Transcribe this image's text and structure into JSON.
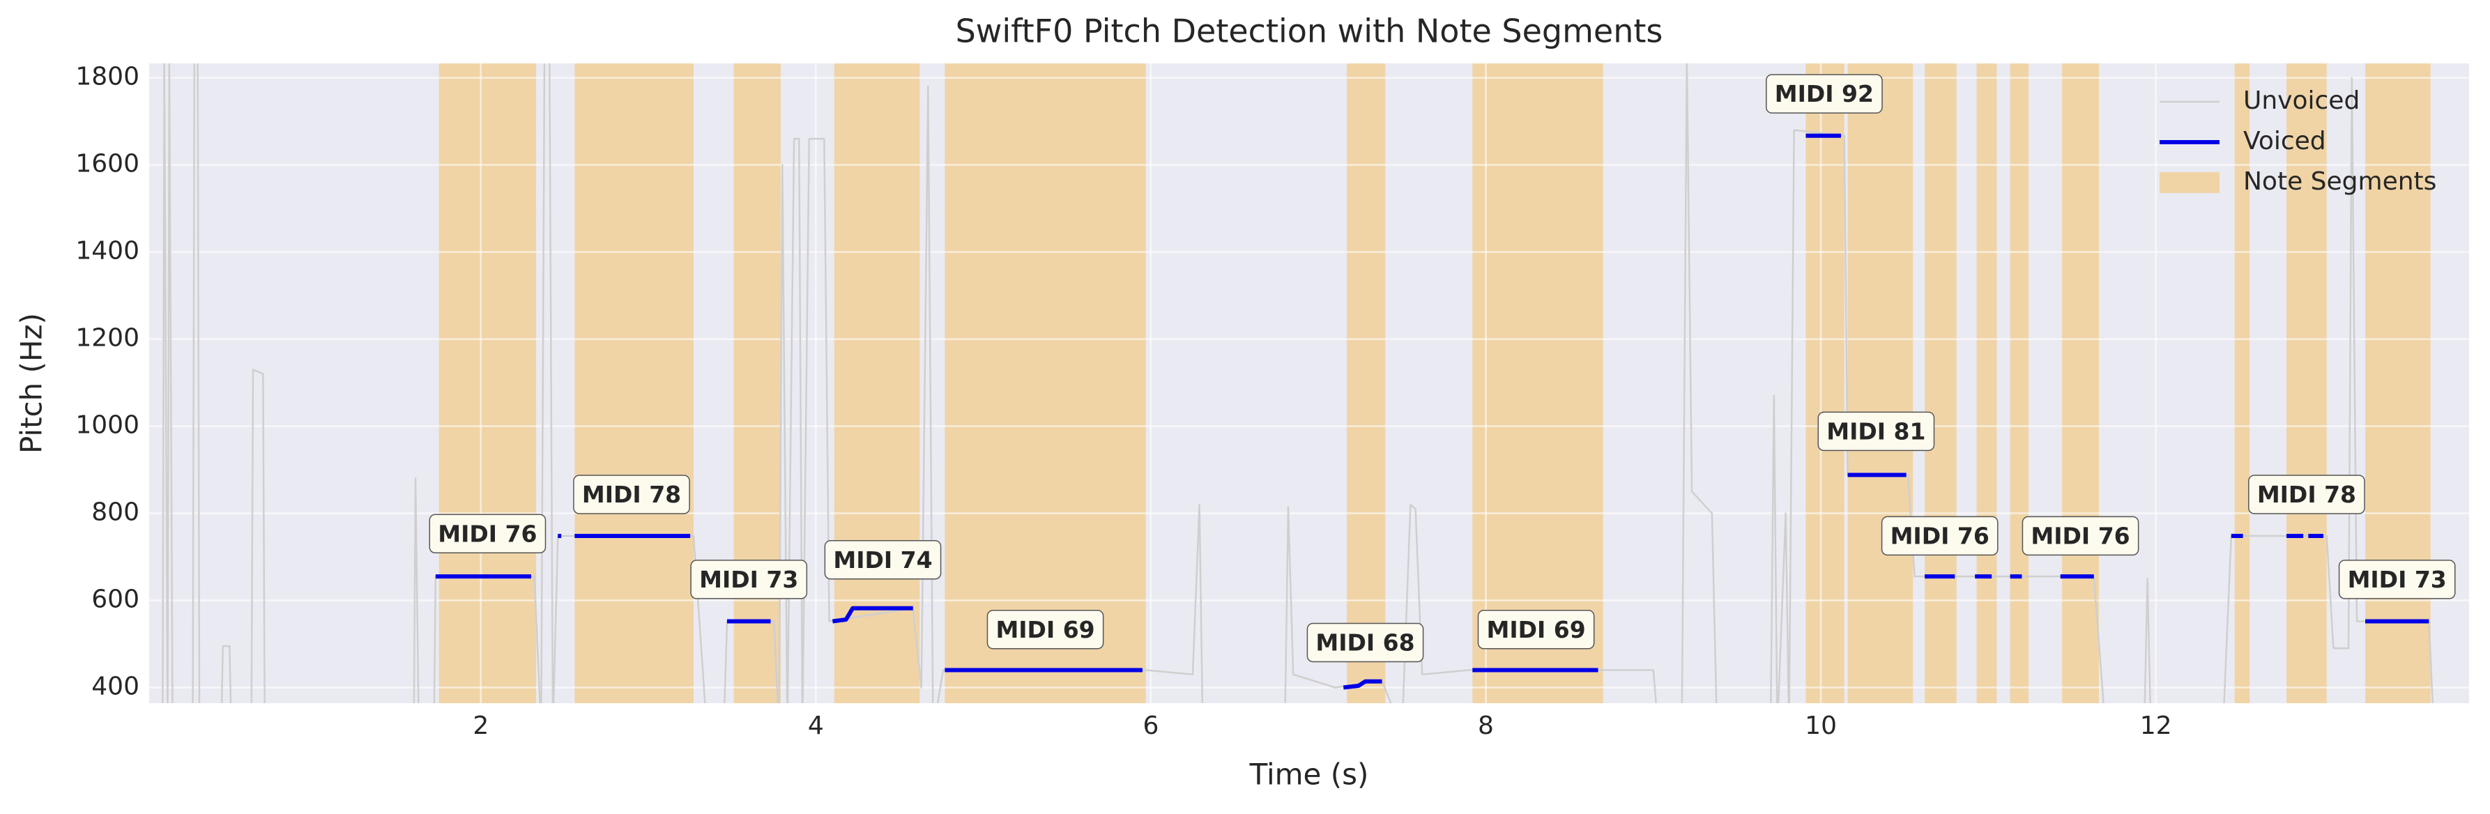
{
  "chart_data": {
    "type": "line",
    "title": "SwiftF0 Pitch Detection with Note Segments",
    "xlabel": "Time (s)",
    "ylabel": "Pitch (Hz)",
    "xlim": [
      0.02,
      13.87
    ],
    "ylim": [
      364,
      1833
    ],
    "xticks": [
      2,
      4,
      6,
      8,
      10,
      12
    ],
    "yticks": [
      400,
      600,
      800,
      1000,
      1200,
      1400,
      1600,
      1800
    ],
    "grid": true,
    "legend": "upper right",
    "background": "#eaeaf2",
    "series": [
      {
        "name": "Unvoiced",
        "color": "#cfcfcf",
        "x": [
          0.1,
          0.11,
          0.13,
          0.14,
          0.16,
          0.28,
          0.29,
          0.31,
          0.32,
          0.45,
          0.46,
          0.5,
          0.51,
          0.63,
          0.64,
          0.7,
          0.71,
          1.6,
          1.61,
          1.63,
          1.72,
          1.73,
          2.32,
          2.36,
          2.38,
          2.41,
          2.43,
          2.46,
          3.27,
          3.35,
          3.45,
          3.47,
          3.75,
          3.78,
          3.8,
          3.83,
          3.87,
          3.9,
          3.92,
          3.96,
          4.05,
          4.08,
          4.58,
          4.63,
          4.67,
          4.7,
          4.76,
          5.97,
          6.25,
          6.29,
          6.31,
          6.8,
          6.82,
          6.85,
          7.1,
          7.38,
          7.5,
          7.55,
          7.58,
          7.62,
          7.9,
          8.68,
          9.0,
          9.03,
          9.17,
          9.2,
          9.23,
          9.35,
          9.38,
          9.7,
          9.72,
          9.74,
          9.79,
          9.81,
          9.84,
          10.14,
          10.16,
          10.52,
          10.56,
          11.63,
          11.7,
          11.93,
          11.95,
          11.97,
          12.4,
          12.45,
          13.02,
          13.06,
          13.15,
          13.17,
          13.2,
          13.63,
          13.66,
          13.87
        ],
        "values": [
          300,
          1850,
          300,
          1850,
          300,
          300,
          1850,
          1850,
          300,
          300,
          495,
          495,
          300,
          300,
          1130,
          1120,
          300,
          300,
          880,
          300,
          300,
          655,
          655,
          300,
          1850,
          1850,
          300,
          748,
          748,
          300,
          300,
          552,
          552,
          300,
          1600,
          300,
          1660,
          1660,
          300,
          1660,
          1660,
          552,
          582,
          400,
          1780,
          300,
          440,
          440,
          430,
          820,
          300,
          300,
          815,
          430,
          400,
          415,
          300,
          820,
          810,
          430,
          440,
          440,
          440,
          300,
          300,
          1850,
          850,
          800,
          300,
          300,
          1070,
          300,
          800,
          300,
          1680,
          1667,
          888,
          888,
          655,
          655,
          300,
          300,
          650,
          300,
          300,
          748,
          748,
          490,
          490,
          1800,
          552,
          552,
          300,
          300
        ]
      },
      {
        "name": "Voiced",
        "color": "#0000e6",
        "x": [
          1.73,
          2.3,
          null,
          2.46,
          2.48,
          null,
          2.56,
          3.25,
          null,
          3.47,
          3.73,
          null,
          4.1,
          4.18,
          4.22,
          4.58,
          null,
          4.77,
          5.95,
          null,
          7.15,
          7.24,
          7.28,
          7.38,
          null,
          7.92,
          8.67,
          null,
          9.91,
          10.12,
          null,
          10.16,
          10.51,
          null,
          10.62,
          10.8,
          null,
          10.92,
          11.02,
          null,
          11.13,
          11.2,
          null,
          11.43,
          11.63,
          null,
          12.45,
          12.52,
          null,
          12.78,
          12.88,
          null,
          12.91,
          13.0,
          null,
          13.25,
          13.63
        ],
        "values": [
          655,
          655,
          null,
          748,
          748,
          null,
          748,
          748,
          null,
          552,
          552,
          null,
          552,
          556,
          582,
          582,
          null,
          440,
          440,
          null,
          400,
          404,
          414,
          414,
          null,
          440,
          440,
          null,
          1667,
          1667,
          null,
          888,
          888,
          null,
          655,
          655,
          null,
          655,
          655,
          null,
          655,
          655,
          null,
          655,
          655,
          null,
          748,
          748,
          null,
          748,
          748,
          null,
          748,
          748,
          null,
          552,
          552
        ]
      }
    ],
    "segments": {
      "name": "Note Segments",
      "color": "#f0d4a6",
      "spans": [
        [
          1.75,
          2.33
        ],
        [
          2.56,
          3.27
        ],
        [
          3.51,
          3.79
        ],
        [
          4.11,
          4.62
        ],
        [
          4.77,
          5.97
        ],
        [
          7.17,
          7.4
        ],
        [
          7.92,
          8.7
        ],
        [
          9.91,
          10.14
        ],
        [
          10.16,
          10.55
        ],
        [
          10.62,
          10.81
        ],
        [
          10.93,
          11.05
        ],
        [
          11.13,
          11.24
        ],
        [
          11.44,
          11.66
        ],
        [
          12.47,
          12.56
        ],
        [
          12.78,
          13.02
        ],
        [
          13.25,
          13.64
        ]
      ]
    },
    "annotations": [
      {
        "text": "MIDI 76",
        "x": 2.04,
        "y": 750
      },
      {
        "text": "MIDI 78",
        "x": 2.9,
        "y": 840
      },
      {
        "text": "MIDI 73",
        "x": 3.6,
        "y": 645
      },
      {
        "text": "MIDI 74",
        "x": 4.4,
        "y": 690
      },
      {
        "text": "MIDI 69",
        "x": 5.37,
        "y": 530
      },
      {
        "text": "MIDI 68",
        "x": 7.28,
        "y": 500
      },
      {
        "text": "MIDI 69",
        "x": 8.3,
        "y": 530
      },
      {
        "text": "MIDI 92",
        "x": 10.02,
        "y": 1760
      },
      {
        "text": "MIDI 81",
        "x": 10.33,
        "y": 985
      },
      {
        "text": "MIDI 76",
        "x": 10.71,
        "y": 745
      },
      {
        "text": "MIDI 76",
        "x": 11.55,
        "y": 745
      },
      {
        "text": "MIDI 78",
        "x": 12.9,
        "y": 840
      },
      {
        "text": "MIDI 73",
        "x": 13.44,
        "y": 645
      }
    ]
  }
}
